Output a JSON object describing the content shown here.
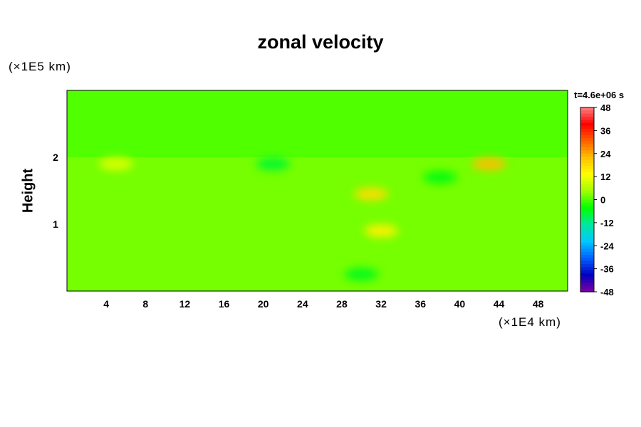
{
  "chart_data": {
    "type": "heatmap",
    "title": "zonal velocity",
    "ylabel": "Height",
    "y_unit": "(×1E5 km)",
    "x_unit": "(×1E4 km)",
    "time_label": "t=4.6e+06 s",
    "xlim": [
      0,
      51
    ],
    "ylim": [
      0,
      3
    ],
    "x_ticks": [
      "4",
      "8",
      "12",
      "16",
      "20",
      "24",
      "28",
      "32",
      "36",
      "40",
      "44",
      "48"
    ],
    "y_ticks": [
      "1",
      "2"
    ],
    "colorbar": {
      "range": [
        -48,
        48
      ],
      "tick_labels": [
        "48",
        "36",
        "24",
        "12",
        "0",
        "-12",
        "-24",
        "-36",
        "-48"
      ],
      "colors": [
        "#8000a0",
        "#0000c0",
        "#0060ff",
        "#00c8ff",
        "#00e8a0",
        "#00ff00",
        "#a0ff00",
        "#ffff00",
        "#ffc000",
        "#ff6000",
        "#ff0000",
        "#ff8080"
      ]
    },
    "field_summary": {
      "upper_layer": {
        "height_range": [
          2.0,
          3.0
        ],
        "velocity": 0
      },
      "lower_layer": {
        "height_range": [
          0.0,
          2.0
        ],
        "velocity_range": [
          -8,
          22
        ]
      },
      "features": [
        {
          "x": 43,
          "y": 1.9,
          "velocity": 22,
          "kind": "max"
        },
        {
          "x": 31,
          "y": 1.45,
          "velocity": 18,
          "kind": "max"
        },
        {
          "x": 32,
          "y": 0.9,
          "velocity": 15,
          "kind": "max"
        },
        {
          "x": 5,
          "y": 1.9,
          "velocity": 10,
          "kind": "max"
        },
        {
          "x": 21,
          "y": 1.9,
          "velocity": -7,
          "kind": "min"
        },
        {
          "x": 38,
          "y": 1.7,
          "velocity": -5,
          "kind": "min"
        },
        {
          "x": 30,
          "y": 0.25,
          "velocity": -6,
          "kind": "min"
        }
      ]
    }
  }
}
